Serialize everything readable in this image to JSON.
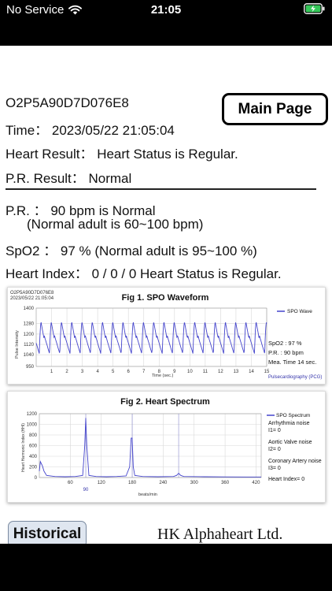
{
  "status_bar": {
    "carrier": "No Service",
    "time": "21:05",
    "wifi_icon": "wifi-icon",
    "battery_icon": "battery-charging-icon"
  },
  "device_id": "O2P5A90D7D076E8",
  "main_page_button": "Main Page",
  "time_line": "Time： 2023/05/22 21:05:04",
  "heart_result": "Heart Result： Heart Status is Regular.",
  "pr_result": "P.R. Result： Normal",
  "pr_line": "P.R. ： 90 bpm is Normal",
  "pr_normal": "(Normal adult is 60~100 bpm)",
  "spo2_line": "SpO2 ： 97 % (Normal adult is 95~100 %)",
  "heart_index_line": "Heart Index： 0 / 0 / 0 Heart Status is Regular.",
  "fig1": {
    "title": "Fig 1. SPO Waveform",
    "corner_id": "O2P5A90D7D076E8",
    "corner_time": "2023/05/22 21:05:04",
    "legend": "SPO Wave",
    "ylabel": "Pulse Intensity",
    "xlabel": "Time (sec.)",
    "spo2": "SpO2 : 97 %",
    "pr": "P.R. : 90 bpm",
    "mea_time": "Mea. Time 14 sec.",
    "footer": "Pulsecardiography (PCG)"
  },
  "fig2": {
    "title": "Fig 2. Heart Spectrum",
    "legend": "SPO Spectrum",
    "ylabel": "Heart Harmonic Index (HHI)",
    "xlabel": "beats/min",
    "marker_label": "90",
    "arrhythmia": "Arrhythmia noise",
    "i1": "I1= 0",
    "aortic": "Aortic Valve noise",
    "i2": "I2= 0",
    "coronary": "Coronary Artery noise",
    "i3": "I3= 0",
    "heart_index": "Heart Index= 0"
  },
  "historical_button": "Historical",
  "company": "HK Alphaheart Ltd.",
  "colors": {
    "series": "#4444cc",
    "grid": "#d8d8d8",
    "accent": "#3333aa"
  },
  "chart_data": [
    {
      "type": "line",
      "title": "Fig 1. SPO Waveform",
      "xlabel": "Time (sec.)",
      "ylabel": "Pulse Intensity",
      "xlim": [
        0,
        15
      ],
      "ylim": [
        950,
        1400
      ],
      "xticks": [
        1,
        2,
        3,
        4,
        5,
        6,
        7,
        8,
        9,
        10,
        11,
        12,
        13,
        14,
        15
      ],
      "yticks": [
        950,
        1040,
        1120,
        1200,
        1280,
        1400
      ],
      "series": [
        {
          "name": "SPO Wave",
          "beats_per_sec": 1.5,
          "start_x": 0.2,
          "peak_value": 1290,
          "trough_value": 1050,
          "baseline_value": 1170
        }
      ]
    },
    {
      "type": "line",
      "title": "Fig 2. Heart Spectrum",
      "xlabel": "beats/min",
      "ylabel": "Heart Harmonic Index (HHI)",
      "xlim": [
        0,
        430
      ],
      "ylim": [
        0,
        1200
      ],
      "xticks": [
        60,
        120,
        180,
        240,
        300,
        360,
        420
      ],
      "yticks": [
        0,
        200,
        400,
        600,
        800,
        1000,
        1200
      ],
      "series": [
        {
          "name": "SPO Spectrum",
          "x": [
            0,
            2,
            6,
            9,
            14,
            30,
            50,
            70,
            84,
            88,
            90,
            92,
            96,
            110,
            130,
            150,
            168,
            175,
            178,
            180,
            182,
            185,
            200,
            230,
            260,
            266,
            270,
            274,
            280,
            320,
            360,
            400,
            430
          ],
          "y": [
            120,
            300,
            220,
            120,
            40,
            20,
            15,
            20,
            40,
            600,
            1120,
            600,
            40,
            20,
            15,
            20,
            30,
            200,
            740,
            740,
            200,
            40,
            20,
            15,
            20,
            40,
            80,
            40,
            20,
            15,
            12,
            10,
            10
          ]
        }
      ],
      "vlines": [
        90,
        180,
        270
      ]
    }
  ]
}
